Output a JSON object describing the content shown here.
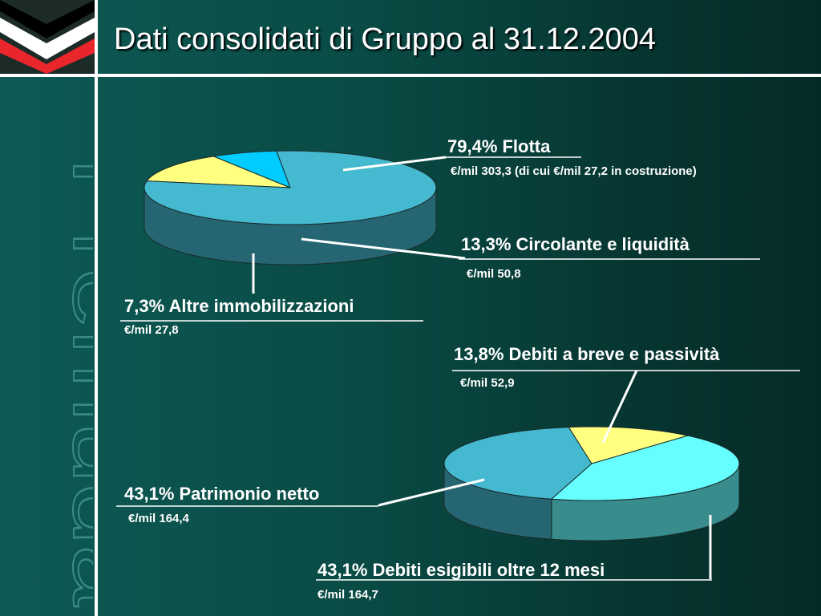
{
  "title": "Dati consolidati di Gruppo al 31.12.2004",
  "brand_watermark": "Premuda",
  "colors": {
    "background": "#0a4a44",
    "accent_white": "#ffffff",
    "logo_red": "#e8262b",
    "logo_black": "#000000"
  },
  "chart_data": [
    {
      "type": "pie",
      "series": [
        {
          "label": "79,4% Flotta",
          "value": 79.4,
          "amount": "€/mil 303,3 (di cui €/mil 27,2 in costruzione)",
          "color": "#45b9cf"
        },
        {
          "label": "13,3% Circolante e liquidità",
          "value": 13.3,
          "amount": "€/mil 50,8",
          "color": "#ffff80"
        },
        {
          "label": "7,3% Altre immobilizzazioni",
          "value": 7.3,
          "amount": "€/mil 27,8",
          "color": "#00ccff"
        }
      ]
    },
    {
      "type": "pie",
      "series": [
        {
          "label": "43,1% Patrimonio netto",
          "value": 43.1,
          "amount": "€/mil 164,4",
          "color": "#45b9cf"
        },
        {
          "label": "13,8% Debiti a breve e passività",
          "value": 13.8,
          "amount": "€/mil 52,9",
          "color": "#ffff80"
        },
        {
          "label": "43,1% Debiti esigibili oltre 12 mesi",
          "value": 43.1,
          "amount": "€/mil 164,7",
          "color": "#66ffff"
        }
      ]
    }
  ]
}
